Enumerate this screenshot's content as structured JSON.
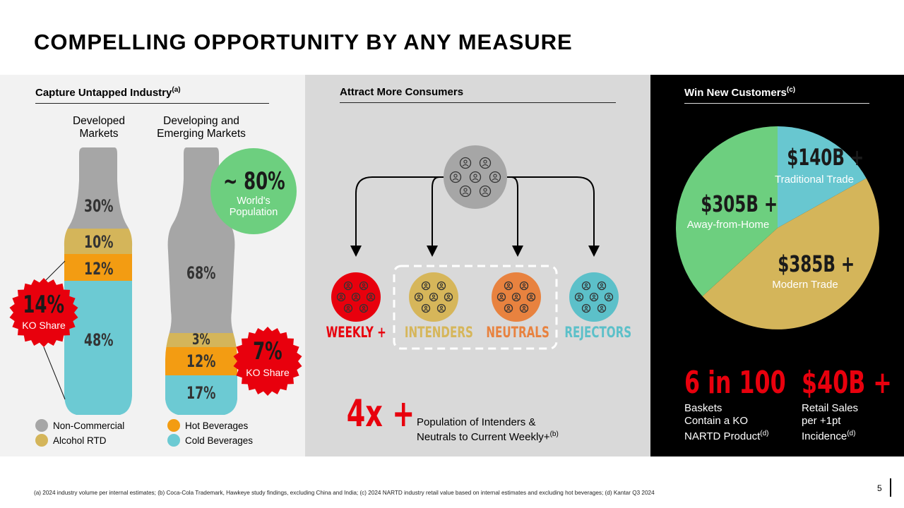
{
  "title": "COMPELLING OPPORTUNITY BY ANY MEASURE",
  "panel1": {
    "heading": "Capture Untapped Industry",
    "heading_sup": "(a)",
    "col_developed": "Developed\nMarkets",
    "col_developing": "Developing and\nEmerging Markets",
    "developed": {
      "non_commercial": "30%",
      "alcohol_rtd": "10%",
      "hot_beverages": "12%",
      "cold_beverages": "48%"
    },
    "developing": {
      "non_commercial": "68%",
      "alcohol_rtd": "3%",
      "hot_beverages": "12%",
      "cold_beverages": "17%"
    },
    "world_pop_value": "~ 80%",
    "world_pop_label": "World's\nPopulation",
    "ko_share_dev_value": "14%",
    "ko_share_dev_label": "KO Share",
    "ko_share_emg_value": "7%",
    "ko_share_emg_label": "KO Share",
    "legend": [
      {
        "label": "Non-Commercial",
        "color": "#a6a6a6"
      },
      {
        "label": "Hot Beverages",
        "color": "#f39c12"
      },
      {
        "label": "Alcohol RTD",
        "color": "#d4b55a"
      },
      {
        "label": "Cold Beverages",
        "color": "#6ccad3"
      }
    ]
  },
  "panel2": {
    "heading": "Attract More Consumers",
    "groups": [
      {
        "label": "WEEKLY +",
        "color": "#e8000d"
      },
      {
        "label": "INTENDERS",
        "color": "#d6b65a"
      },
      {
        "label": "NEUTRALS",
        "color": "#e8823f"
      },
      {
        "label": "REJECTORS",
        "color": "#5cc0c9"
      }
    ],
    "multiplier": "4x +",
    "multiplier_text": "Population of Intenders &\nNeutrals to Current Weekly+",
    "multiplier_sup": "(b)"
  },
  "panel3": {
    "heading": "Win New Customers",
    "heading_sup": "(c)",
    "chart_data": {
      "type": "pie",
      "title": "",
      "slices": [
        {
          "label": "Traditional Trade",
          "value_label": "$140B +",
          "value": 140,
          "color": "#68c7d0"
        },
        {
          "label": "Modern Trade",
          "value_label": "$385B +",
          "value": 385,
          "color": "#d4b55a"
        },
        {
          "label": "Away-from-Home",
          "value_label": "$305B +",
          "value": 305,
          "color": "#6dcf7f"
        }
      ]
    },
    "stat1_value": "6 in 100",
    "stat1_text": "Baskets\nContain a KO\nNARTD Product",
    "stat1_sup": "(d)",
    "stat2_value": "$40B +",
    "stat2_text": "Retail Sales\nper +1pt\nIncidence",
    "stat2_sup": "(d)"
  },
  "footer": "(a) 2024 industry volume per internal estimates; (b) Coca-Cola Trademark, Hawkeye study findings, excluding China and India; (c) 2024 NARTD industry retail value based on internal estimates and excluding hot beverages; (d) Kantar Q3 2024",
  "page_number": "5"
}
